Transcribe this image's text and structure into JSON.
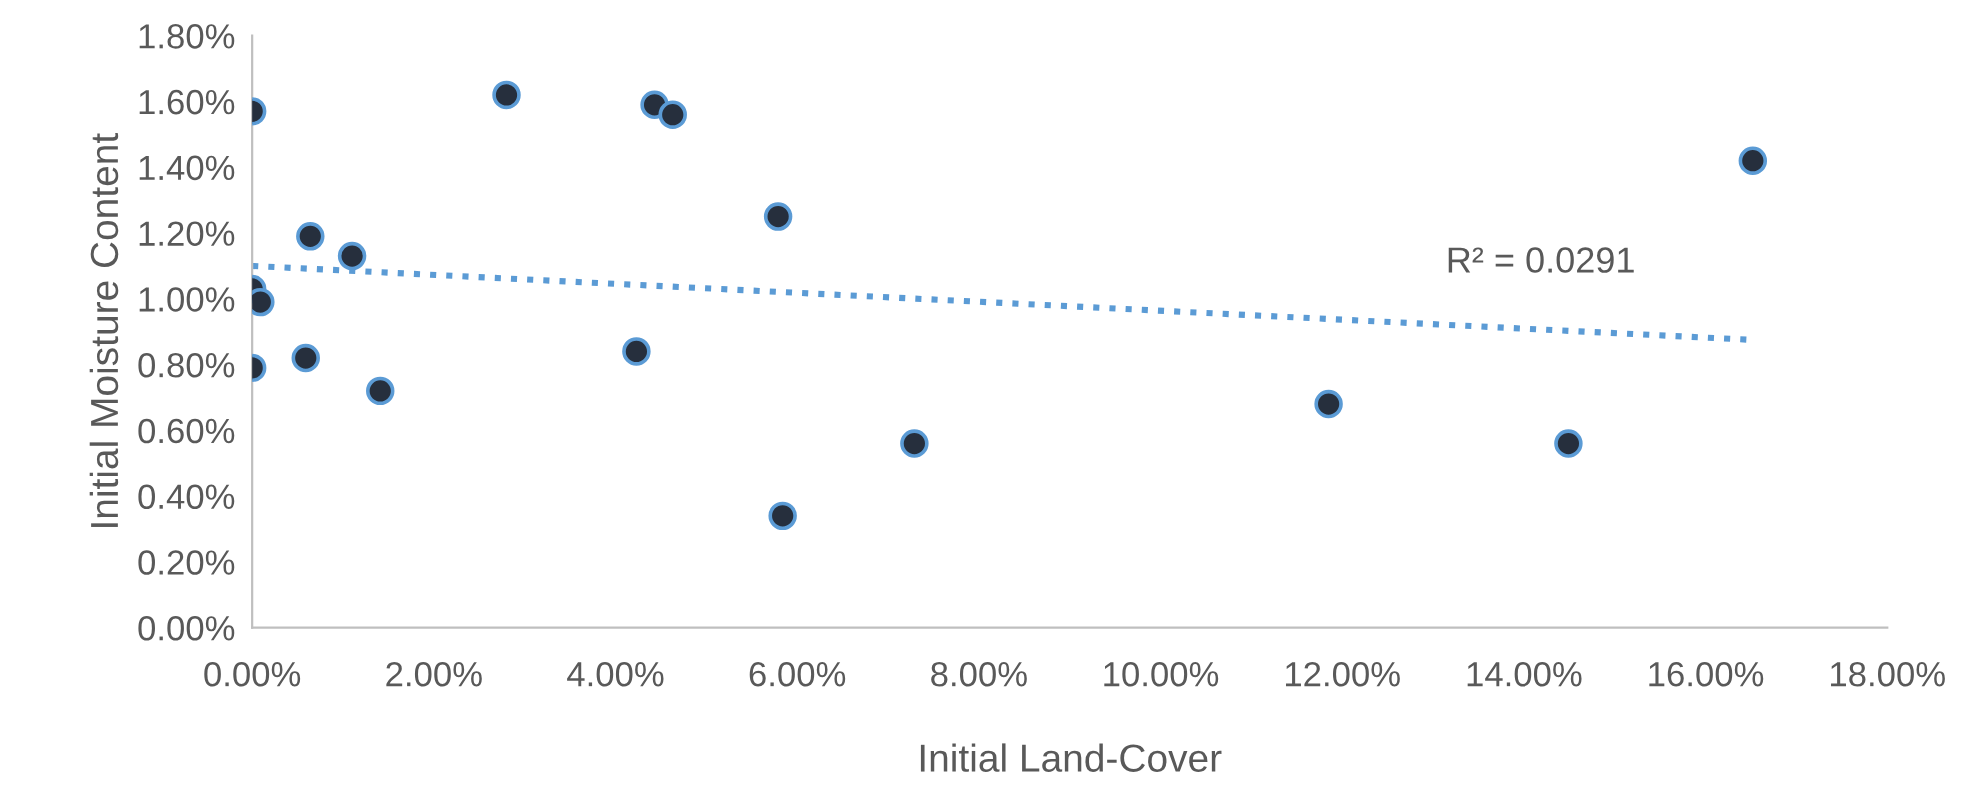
{
  "chart_data": {
    "type": "scatter",
    "xlabel": "Initial Land-Cover",
    "ylabel": "Initial Moisture Content",
    "series": [
      {
        "color": "#262f3d",
        "marker": "circle",
        "x": [
          0.0,
          2.8,
          4.43,
          4.63,
          5.79,
          0.0,
          0.09,
          0.0,
          0.64,
          1.1,
          0.59,
          1.41,
          4.23,
          5.84,
          7.29,
          11.85,
          14.49,
          16.52
        ],
        "values": [
          1.57,
          1.62,
          1.59,
          1.56,
          1.25,
          1.03,
          0.99,
          0.79,
          1.19,
          1.13,
          0.82,
          0.72,
          0.84,
          0.34,
          0.56,
          0.68,
          0.56,
          1.42
        ]
      },
      {
        "type": "line",
        "color": "#5b9bd5",
        "line_style": "dotted",
        "marker": "none",
        "x": [
          0.0,
          16.52
        ],
        "values": [
          1.1,
          0.875
        ]
      }
    ],
    "annotations": [
      "R² = 0.0291"
    ],
    "xlim": [
      0,
      18
    ],
    "ylim": [
      0,
      1.8
    ],
    "xticks": [
      {
        "value": 0,
        "label": "0.00%"
      },
      {
        "value": 2,
        "label": "2.00%"
      },
      {
        "value": 4,
        "label": "4.00%"
      },
      {
        "value": 6,
        "label": "6.00%"
      },
      {
        "value": 8,
        "label": "8.00%"
      },
      {
        "value": 10,
        "label": "10.00%"
      },
      {
        "value": 12,
        "label": "12.00%"
      },
      {
        "value": 14,
        "label": "14.00%"
      },
      {
        "value": 16,
        "label": "16.00%"
      },
      {
        "value": 18,
        "label": "18.00%"
      }
    ],
    "yticks": [
      {
        "value": 0,
        "label": "0.00%"
      },
      {
        "value": 0.2,
        "label": "0.20%"
      },
      {
        "value": 0.4,
        "label": "0.40%"
      },
      {
        "value": 0.6,
        "label": "0.60%"
      },
      {
        "value": 0.8,
        "label": "0.80%"
      },
      {
        "value": 1.0,
        "label": "1.00%"
      },
      {
        "value": 1.2,
        "label": "1.20%"
      },
      {
        "value": 1.4,
        "label": "1.40%"
      },
      {
        "value": 1.6,
        "label": "1.60%"
      },
      {
        "value": 1.8,
        "label": "1.80%"
      }
    ],
    "grid": false,
    "legend": false
  }
}
